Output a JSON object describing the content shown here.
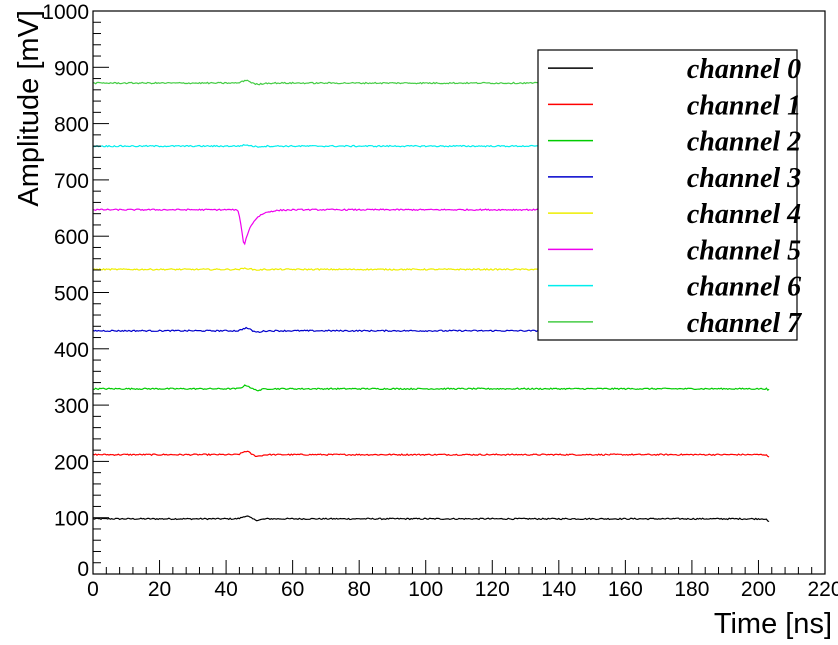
{
  "chart_data": {
    "type": "line",
    "title": "",
    "xlabel": "Time [ns]",
    "ylabel": "Amplitude [mV]",
    "xlim": [
      0,
      220
    ],
    "ylim": [
      0,
      1000
    ],
    "x_ticks": [
      0,
      20,
      40,
      60,
      80,
      100,
      120,
      140,
      160,
      180,
      200,
      220
    ],
    "y_ticks": [
      0,
      100,
      200,
      300,
      400,
      500,
      600,
      700,
      800,
      900,
      1000
    ],
    "x_range": [
      0,
      203.5
    ],
    "grid": false,
    "legend_position": "top-right",
    "series": [
      {
        "name": "channel 0",
        "color": "#000000",
        "baseline": 98,
        "bump": 5,
        "end_drop": 5
      },
      {
        "name": "channel 1",
        "color": "#ff0000",
        "baseline": 212,
        "bump": 6,
        "end_drop": 4
      },
      {
        "name": "channel 2",
        "color": "#00cc00",
        "baseline": 329,
        "bump": 6,
        "end_drop": 2
      },
      {
        "name": "channel 3",
        "color": "#0000cc",
        "baseline": 432,
        "bump": 5,
        "end_drop": 0
      },
      {
        "name": "channel 4",
        "color": "#eeee00",
        "baseline": 541,
        "bump": 2,
        "end_drop": 0
      },
      {
        "name": "channel 5",
        "color": "#ee00ee",
        "baseline": 647,
        "dip_min": 585,
        "dip_at": 45.5,
        "end_drop": 0
      },
      {
        "name": "channel 6",
        "color": "#00eeee",
        "baseline": 760,
        "bump": 2,
        "end_drop": 0
      },
      {
        "name": "channel 7",
        "color": "#44cc44",
        "baseline": 872,
        "bump": 5,
        "end_drop": 0
      }
    ]
  }
}
